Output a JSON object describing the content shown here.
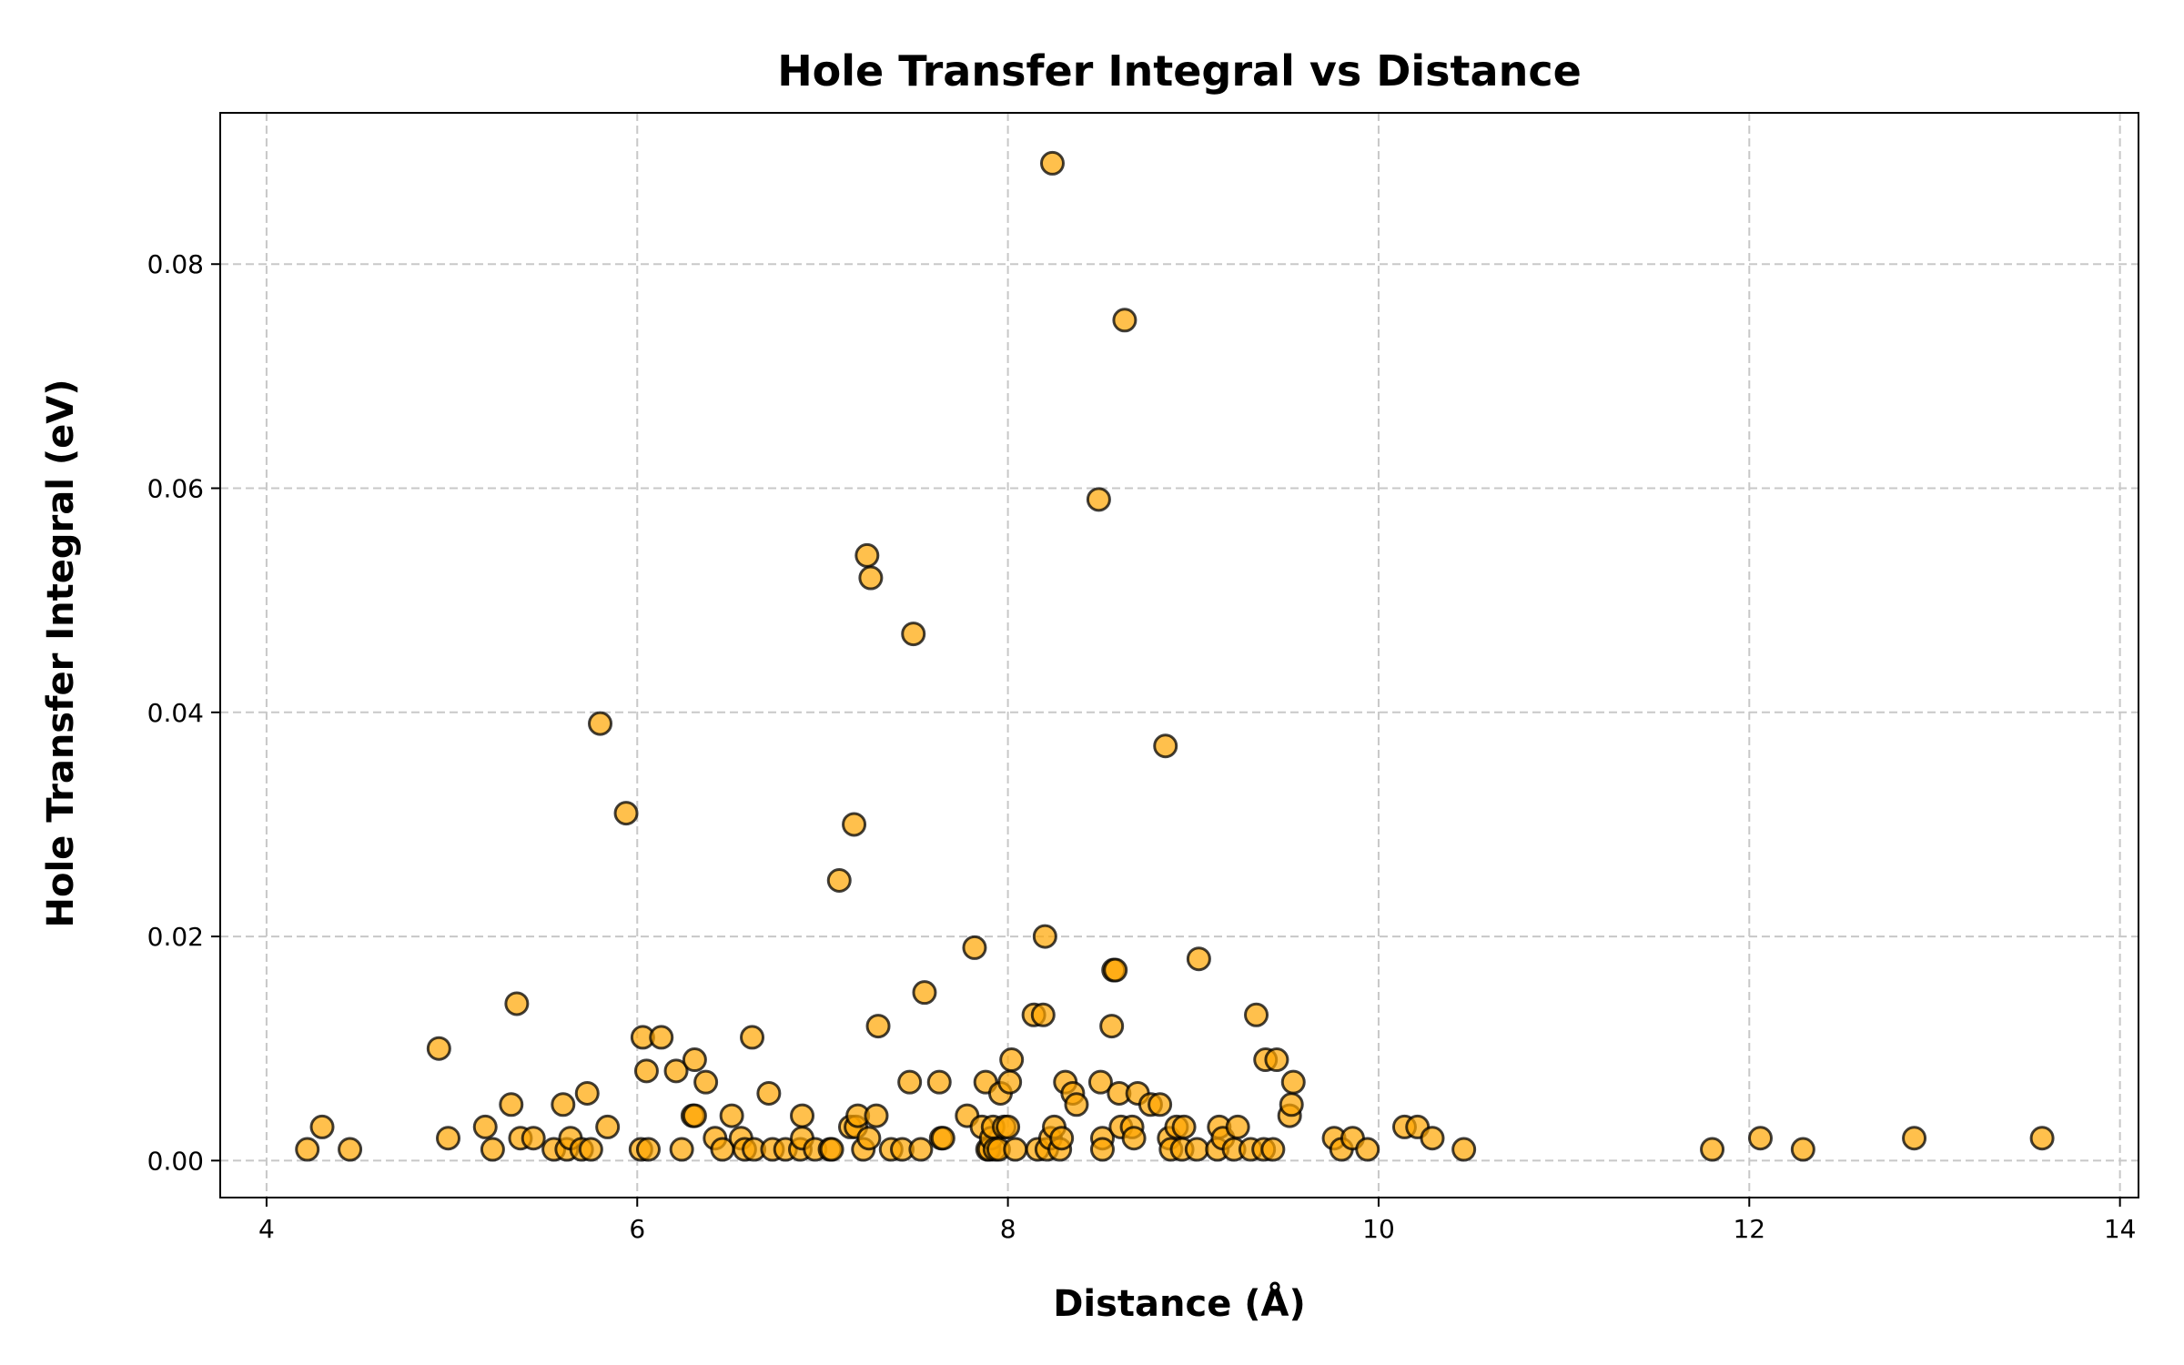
{
  "chart_data": {
    "type": "scatter",
    "title": "Hole Transfer Integral vs Distance",
    "xlabel": "Distance (Å)",
    "ylabel": "Hole Transfer Integral (eV)",
    "xlim": [
      3.75,
      14.1
    ],
    "ylim": [
      -0.0033,
      0.0935
    ],
    "xticks": [
      4,
      6,
      8,
      10,
      12,
      14
    ],
    "xtick_labels": [
      "4",
      "6",
      "8",
      "10",
      "12",
      "14"
    ],
    "yticks": [
      0.0,
      0.02,
      0.04,
      0.06,
      0.08
    ],
    "ytick_labels": [
      "0.00",
      "0.02",
      "0.04",
      "0.06",
      "0.08"
    ],
    "grid": true,
    "legend": "none",
    "marker_color": "#FFA500",
    "marker_edge_color": "#000000",
    "marker_alpha": 0.7,
    "points": [
      [
        4.22,
        0.001
      ],
      [
        4.3,
        0.003
      ],
      [
        4.45,
        0.001
      ],
      [
        4.93,
        0.01
      ],
      [
        4.98,
        0.002
      ],
      [
        5.18,
        0.003
      ],
      [
        5.22,
        0.001
      ],
      [
        5.32,
        0.005
      ],
      [
        5.35,
        0.014
      ],
      [
        5.37,
        0.002
      ],
      [
        5.44,
        0.002
      ],
      [
        5.55,
        0.001
      ],
      [
        5.6,
        0.005
      ],
      [
        5.62,
        0.001
      ],
      [
        5.64,
        0.002
      ],
      [
        5.7,
        0.001
      ],
      [
        5.73,
        0.006
      ],
      [
        5.75,
        0.001
      ],
      [
        5.8,
        0.039
      ],
      [
        5.84,
        0.003
      ],
      [
        5.94,
        0.031
      ],
      [
        6.02,
        0.001
      ],
      [
        6.03,
        0.011
      ],
      [
        6.05,
        0.008
      ],
      [
        6.06,
        0.001
      ],
      [
        6.13,
        0.011
      ],
      [
        6.21,
        0.008
      ],
      [
        6.24,
        0.001
      ],
      [
        6.3,
        0.004
      ],
      [
        6.31,
        0.009
      ],
      [
        6.31,
        0.004
      ],
      [
        6.37,
        0.007
      ],
      [
        6.42,
        0.002
      ],
      [
        6.46,
        0.001
      ],
      [
        6.51,
        0.004
      ],
      [
        6.56,
        0.002
      ],
      [
        6.58,
        0.001
      ],
      [
        6.62,
        0.011
      ],
      [
        6.63,
        0.001
      ],
      [
        6.71,
        0.006
      ],
      [
        6.73,
        0.001
      ],
      [
        6.8,
        0.001
      ],
      [
        6.88,
        0.001
      ],
      [
        6.89,
        0.004
      ],
      [
        6.89,
        0.002
      ],
      [
        6.96,
        0.001
      ],
      [
        7.04,
        0.001
      ],
      [
        7.05,
        0.001
      ],
      [
        7.09,
        0.025
      ],
      [
        7.15,
        0.003
      ],
      [
        7.17,
        0.03
      ],
      [
        7.18,
        0.003
      ],
      [
        7.19,
        0.004
      ],
      [
        7.22,
        0.001
      ],
      [
        7.24,
        0.054
      ],
      [
        7.25,
        0.002
      ],
      [
        7.26,
        0.052
      ],
      [
        7.29,
        0.004
      ],
      [
        7.3,
        0.012
      ],
      [
        7.37,
        0.001
      ],
      [
        7.43,
        0.001
      ],
      [
        7.47,
        0.007
      ],
      [
        7.49,
        0.047
      ],
      [
        7.53,
        0.001
      ],
      [
        7.55,
        0.015
      ],
      [
        7.63,
        0.007
      ],
      [
        7.64,
        0.002
      ],
      [
        7.65,
        0.002
      ],
      [
        7.78,
        0.004
      ],
      [
        7.82,
        0.019
      ],
      [
        7.86,
        0.003
      ],
      [
        7.88,
        0.007
      ],
      [
        7.89,
        0.001
      ],
      [
        7.9,
        0.001
      ],
      [
        7.91,
        0.002
      ],
      [
        7.92,
        0.003
      ],
      [
        7.93,
        0.001
      ],
      [
        7.95,
        0.001
      ],
      [
        7.96,
        0.006
      ],
      [
        7.98,
        0.003
      ],
      [
        8.0,
        0.003
      ],
      [
        8.01,
        0.007
      ],
      [
        8.02,
        0.009
      ],
      [
        8.04,
        0.001
      ],
      [
        8.14,
        0.013
      ],
      [
        8.16,
        0.001
      ],
      [
        8.19,
        0.013
      ],
      [
        8.2,
        0.02
      ],
      [
        8.21,
        0.001
      ],
      [
        8.23,
        0.002
      ],
      [
        8.24,
        0.089
      ],
      [
        8.25,
        0.003
      ],
      [
        8.28,
        0.001
      ],
      [
        8.29,
        0.002
      ],
      [
        8.31,
        0.007
      ],
      [
        8.35,
        0.006
      ],
      [
        8.37,
        0.005
      ],
      [
        8.49,
        0.059
      ],
      [
        8.5,
        0.007
      ],
      [
        8.51,
        0.002
      ],
      [
        8.51,
        0.001
      ],
      [
        8.56,
        0.012
      ],
      [
        8.57,
        0.017
      ],
      [
        8.58,
        0.017
      ],
      [
        8.6,
        0.006
      ],
      [
        8.61,
        0.003
      ],
      [
        8.63,
        0.075
      ],
      [
        8.67,
        0.003
      ],
      [
        8.68,
        0.002
      ],
      [
        8.7,
        0.006
      ],
      [
        8.77,
        0.005
      ],
      [
        8.82,
        0.005
      ],
      [
        8.85,
        0.037
      ],
      [
        8.87,
        0.002
      ],
      [
        8.88,
        0.001
      ],
      [
        8.91,
        0.003
      ],
      [
        8.94,
        0.001
      ],
      [
        8.95,
        0.003
      ],
      [
        9.02,
        0.001
      ],
      [
        9.03,
        0.018
      ],
      [
        9.13,
        0.001
      ],
      [
        9.14,
        0.003
      ],
      [
        9.16,
        0.002
      ],
      [
        9.22,
        0.001
      ],
      [
        9.24,
        0.003
      ],
      [
        9.31,
        0.001
      ],
      [
        9.34,
        0.013
      ],
      [
        9.38,
        0.001
      ],
      [
        9.39,
        0.009
      ],
      [
        9.43,
        0.001
      ],
      [
        9.45,
        0.009
      ],
      [
        9.52,
        0.004
      ],
      [
        9.53,
        0.005
      ],
      [
        9.54,
        0.007
      ],
      [
        9.76,
        0.002
      ],
      [
        9.8,
        0.001
      ],
      [
        9.86,
        0.002
      ],
      [
        9.94,
        0.001
      ],
      [
        10.14,
        0.003
      ],
      [
        10.21,
        0.003
      ],
      [
        10.29,
        0.002
      ],
      [
        10.46,
        0.001
      ],
      [
        11.8,
        0.001
      ],
      [
        12.06,
        0.002
      ],
      [
        12.29,
        0.001
      ],
      [
        12.89,
        0.002
      ],
      [
        13.58,
        0.002
      ]
    ]
  }
}
